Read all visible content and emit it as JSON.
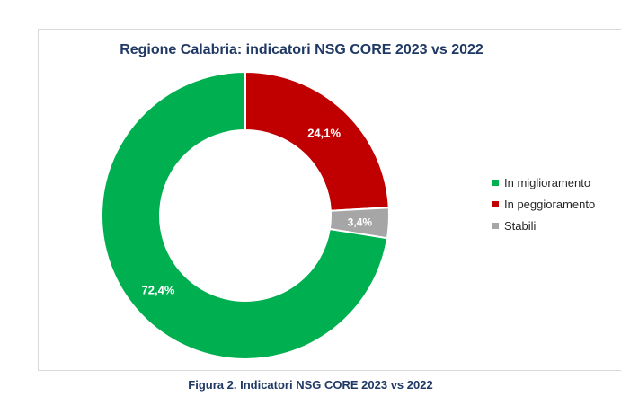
{
  "chart_data": {
    "type": "pie",
    "variant": "donut",
    "title": "Regione Calabria: indicatori NSG CORE 2023 vs 2022",
    "categories": [
      "In miglioramento",
      "In peggioramento",
      "Stabili"
    ],
    "values": [
      72.4,
      24.1,
      3.4
    ],
    "value_labels": [
      "72,4%",
      "24,1%",
      "3,4%"
    ],
    "colors": [
      "#00b050",
      "#c00000",
      "#a6a6a6"
    ],
    "start_order": [
      "In peggioramento",
      "Stabili",
      "In miglioramento"
    ],
    "legend_position": "right"
  },
  "caption": "Figura 2. Indicatori NSG CORE 2023 vs 2022"
}
